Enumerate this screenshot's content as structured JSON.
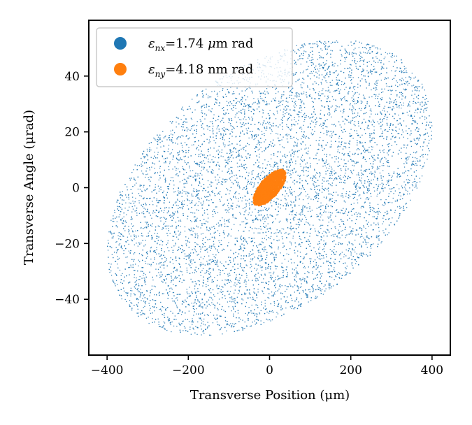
{
  "chart_data": {
    "type": "scatter",
    "title": "",
    "xlabel": "Transverse Position (μm)",
    "ylabel": "Transverse Angle (μrad)",
    "xlim": [
      -445,
      445
    ],
    "ylim": [
      -60,
      60
    ],
    "xticks": [
      -400,
      -200,
      0,
      200,
      400
    ],
    "xtick_labels": [
      "−400",
      "−200",
      "0",
      "200",
      "400"
    ],
    "yticks": [
      -40,
      -20,
      0,
      20,
      40
    ],
    "ytick_labels": [
      "−40",
      "−20",
      "0",
      "20",
      "40"
    ],
    "grid": false,
    "legend_position": "top-left",
    "series": [
      {
        "name": "εnx=1.74 μm rad",
        "legend_symbol": "ε",
        "legend_subscript": "nx",
        "legend_value": "=1.74 ",
        "legend_unit_symbol": "μ",
        "legend_unit_rest": "m rad",
        "color": "#1f77b4",
        "distribution": "uniform_ellipse",
        "ellipse": {
          "cx": 0,
          "cy": 0,
          "x_extent": 400,
          "y_extent": 53,
          "y_at_x_max": 22
        }
      },
      {
        "name": "εny=4.18 nm rad",
        "legend_symbol": "ε",
        "legend_subscript": "ny",
        "legend_value": "=4.18 nm rad",
        "legend_unit_symbol": "",
        "legend_unit_rest": "",
        "color": "#ff7f0e",
        "distribution": "uniform_ellipse",
        "ellipse": {
          "cx": 0,
          "cy": 0,
          "x_extent": 40,
          "y_extent": 6.5,
          "y_at_x_max": 4.5
        }
      }
    ]
  }
}
